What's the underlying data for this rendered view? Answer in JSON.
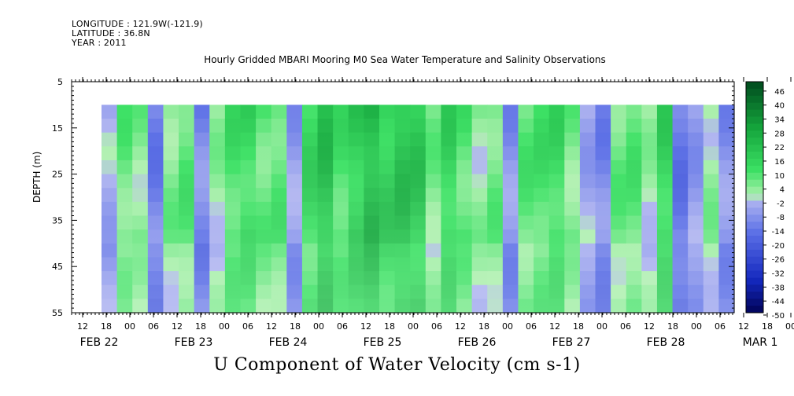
{
  "header": {
    "longitude": "LONGITUDE : 121.9W(-121.9)",
    "latitude": "LATITUDE : 36.8N",
    "year": "YEAR : 2011"
  },
  "chart_data": {
    "type": "heatmap",
    "title": "Hourly Gridded MBARI Mooring M0 Sea Water Temperature and Salinity Observations",
    "xlabel": "U Component of Water Velocity (cm s-1)",
    "ylabel": "DEPTH (m)",
    "y_ticks": [
      5,
      15,
      25,
      35,
      45,
      55
    ],
    "ylim": [
      55,
      5
    ],
    "data_depth_range": [
      10,
      55
    ],
    "x_hour_ticks": [
      "12",
      "18",
      "00",
      "06",
      "12",
      "18",
      "00",
      "06",
      "12",
      "18",
      "00",
      "06",
      "12",
      "18",
      "00",
      "06",
      "12",
      "18",
      "00",
      "06",
      "12",
      "18",
      "00",
      "06",
      "12",
      "18",
      "00",
      "06",
      "12",
      "18",
      "00",
      "06"
    ],
    "x_day_labels": [
      "FEB 22",
      "FEB 23",
      "FEB 24",
      "FEB 25",
      "FEB 26",
      "FEB 27",
      "FEB 28",
      "MAR  1"
    ],
    "colorbar_labels": [
      "46",
      "40",
      "34",
      "28",
      "22",
      "16",
      "10",
      "4",
      "-2",
      "-8",
      "-14",
      "-20",
      "-26",
      "-32",
      "-38",
      "-44",
      "-50"
    ],
    "colorbar_range": [
      -50,
      50
    ],
    "colorbar_step": 3,
    "profile_columns": [
      {
        "time": "FEB 22 16",
        "u": -4
      },
      {
        "time": "FEB 22 20",
        "u": 8
      },
      {
        "time": "FEB 23 00",
        "u": 5
      },
      {
        "time": "FEB 23 04",
        "u": -12
      },
      {
        "time": "FEB 23 08",
        "u": 6
      },
      {
        "time": "FEB 23 12",
        "u": 10
      },
      {
        "time": "FEB 23 16",
        "u": -10
      },
      {
        "time": "FEB 23 20",
        "u": 3
      },
      {
        "time": "FEB 24 00",
        "u": 12
      },
      {
        "time": "FEB 24 04",
        "u": 14
      },
      {
        "time": "FEB 24 08",
        "u": 9
      },
      {
        "time": "FEB 24 12",
        "u": 10
      },
      {
        "time": "FEB 24 16",
        "u": -6
      },
      {
        "time": "FEB 24 20",
        "u": 15
      },
      {
        "time": "FEB 25 00",
        "u": 22
      },
      {
        "time": "FEB 25 04",
        "u": 12
      },
      {
        "time": "FEB 25 08",
        "u": 18
      },
      {
        "time": "FEB 25 12",
        "u": 24
      },
      {
        "time": "FEB 25 16",
        "u": 18
      },
      {
        "time": "FEB 25 20",
        "u": 22
      },
      {
        "time": "FEB 26 00",
        "u": 20
      },
      {
        "time": "FEB 26 04",
        "u": 6
      },
      {
        "time": "FEB 26 08",
        "u": 16
      },
      {
        "time": "FEB 26 12",
        "u": 10
      },
      {
        "time": "FEB 26 16",
        "u": 4
      },
      {
        "time": "FEB 26 20",
        "u": 8
      },
      {
        "time": "FEB 27 00",
        "u": -8
      },
      {
        "time": "FEB 27 04",
        "u": 10
      },
      {
        "time": "FEB 27 08",
        "u": 12
      },
      {
        "time": "FEB 27 12",
        "u": 14
      },
      {
        "time": "FEB 27 16",
        "u": 6
      },
      {
        "time": "FEB 27 20",
        "u": -4
      },
      {
        "time": "FEB 28 00",
        "u": -10
      },
      {
        "time": "FEB 28 04",
        "u": 8
      },
      {
        "time": "FEB 28 08",
        "u": 10
      },
      {
        "time": "FEB 28 12",
        "u": 2
      },
      {
        "time": "FEB 28 16",
        "u": 16
      },
      {
        "time": "FEB 28 20",
        "u": -14
      },
      {
        "time": "MAR 1 00",
        "u": -6
      },
      {
        "time": "MAR 1 04",
        "u": 4
      },
      {
        "time": "MAR 1 08",
        "u": -8
      }
    ]
  }
}
